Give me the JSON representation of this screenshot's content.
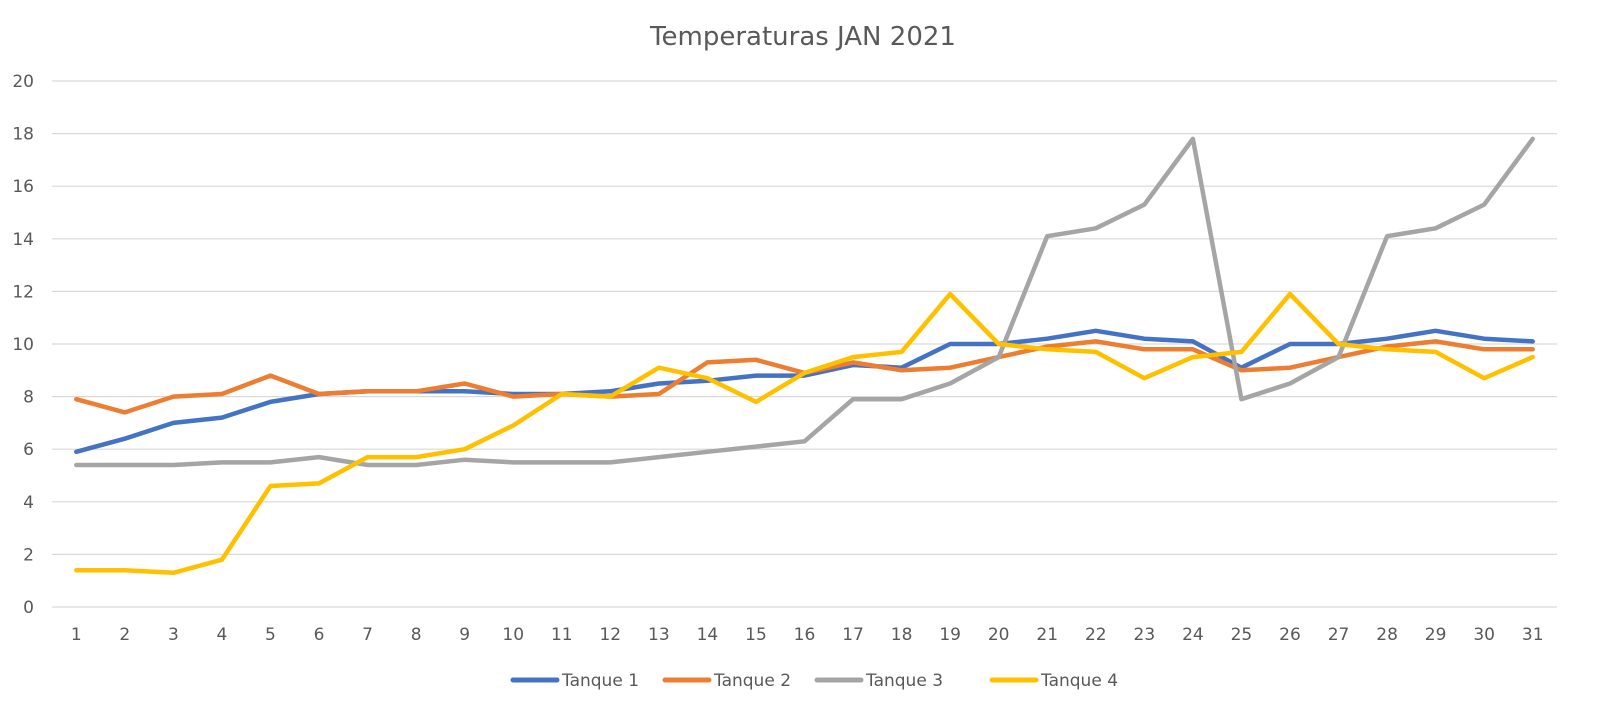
{
  "chart_data": {
    "type": "line",
    "title": "Temperaturas JAN 2021",
    "xlabel": "",
    "ylabel": "",
    "ylim": [
      0,
      20
    ],
    "y_ticks": [
      0,
      2,
      4,
      6,
      8,
      10,
      12,
      14,
      16,
      18,
      20
    ],
    "grid": true,
    "legend_position": "bottom",
    "categories": [
      "1",
      "2",
      "3",
      "4",
      "5",
      "6",
      "7",
      "8",
      "9",
      "10",
      "11",
      "12",
      "13",
      "14",
      "15",
      "16",
      "17",
      "18",
      "19",
      "20",
      "21",
      "22",
      "23",
      "24",
      "25",
      "26",
      "27",
      "28",
      "29",
      "30",
      "31"
    ],
    "series": [
      {
        "name": "Tanque 1",
        "color": "#4472c4",
        "values": [
          5.9,
          6.4,
          7.0,
          7.2,
          7.8,
          8.1,
          8.2,
          8.2,
          8.2,
          8.1,
          8.1,
          8.2,
          8.5,
          8.6,
          8.8,
          8.8,
          9.2,
          9.1,
          10.0,
          10.0,
          10.2,
          10.5,
          10.2,
          10.1,
          9.1,
          10.0,
          10.0,
          10.2,
          10.5,
          10.2,
          10.1
        ]
      },
      {
        "name": "Tanque 2",
        "color": "#ed7d31",
        "values": [
          7.9,
          7.4,
          8.0,
          8.1,
          8.8,
          8.1,
          8.2,
          8.2,
          8.5,
          8.0,
          8.1,
          8.0,
          8.1,
          9.3,
          9.4,
          8.9,
          9.3,
          9.0,
          9.1,
          9.5,
          9.9,
          10.1,
          9.8,
          9.8,
          9.0,
          9.1,
          9.5,
          9.9,
          10.1,
          9.8,
          9.8
        ]
      },
      {
        "name": "Tanque 3",
        "color": "#a5a5a5",
        "values": [
          5.4,
          5.4,
          5.4,
          5.5,
          5.5,
          5.7,
          5.4,
          5.4,
          5.6,
          5.5,
          5.5,
          5.5,
          5.7,
          5.9,
          6.1,
          6.3,
          7.9,
          7.9,
          8.5,
          9.5,
          14.1,
          14.4,
          15.3,
          17.8,
          7.9,
          8.5,
          9.5,
          14.1,
          14.4,
          15.3,
          17.8
        ]
      },
      {
        "name": "Tanque 4",
        "color": "#ffc000",
        "values": [
          1.4,
          1.4,
          1.3,
          1.8,
          4.6,
          4.7,
          5.7,
          5.7,
          6.0,
          6.9,
          8.1,
          8.0,
          9.1,
          8.7,
          7.8,
          8.9,
          9.5,
          9.7,
          11.9,
          10.0,
          9.8,
          9.7,
          8.7,
          9.5,
          9.7,
          11.9,
          10.0,
          9.8,
          9.7,
          8.7,
          9.5
        ]
      }
    ]
  }
}
